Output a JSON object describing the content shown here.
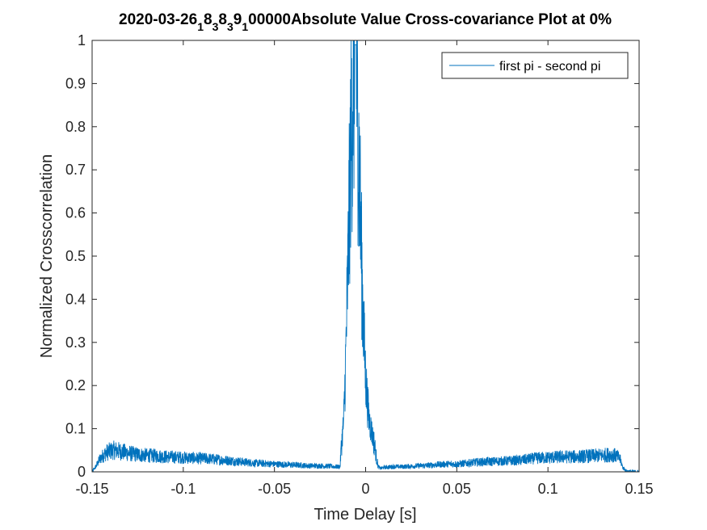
{
  "chart_data": {
    "type": "line",
    "title_parts": [
      {
        "text": "2020-03-26",
        "sub": false
      },
      {
        "text": "1",
        "sub": true
      },
      {
        "text": "8",
        "sub": false
      },
      {
        "text": "3",
        "sub": true
      },
      {
        "text": "8",
        "sub": false
      },
      {
        "text": "3",
        "sub": true
      },
      {
        "text": "9",
        "sub": false
      },
      {
        "text": "1",
        "sub": true
      },
      {
        "text": "00000Absolute Value Cross-covariance Plot at 0%",
        "sub": false
      }
    ],
    "xlabel": "Time Delay [s]",
    "ylabel": "Normalized Crosscorrelation",
    "xlim": [
      -0.15,
      0.15
    ],
    "ylim": [
      0,
      1
    ],
    "xticks": [
      -0.15,
      -0.1,
      -0.05,
      0,
      0.05,
      0.1,
      0.15
    ],
    "xtick_labels": [
      "-0.15",
      "-0.1",
      "-0.05",
      "0",
      "0.05",
      "0.1",
      "0.15"
    ],
    "yticks": [
      0,
      0.1,
      0.2,
      0.3,
      0.4,
      0.5,
      0.6,
      0.7,
      0.8,
      0.9,
      1
    ],
    "ytick_labels": [
      "0",
      "0.1",
      "0.2",
      "0.3",
      "0.4",
      "0.5",
      "0.6",
      "0.7",
      "0.8",
      "0.9",
      "1"
    ],
    "grid": false,
    "legend_position": "top-right",
    "series": [
      {
        "name": "first pi - second pi",
        "color": "#0072BD",
        "x": [
          -0.15,
          -0.148,
          -0.146,
          -0.144,
          -0.142,
          -0.14,
          -0.138,
          -0.136,
          -0.134,
          -0.132,
          -0.13,
          -0.125,
          -0.12,
          -0.115,
          -0.11,
          -0.105,
          -0.1,
          -0.095,
          -0.09,
          -0.085,
          -0.08,
          -0.075,
          -0.07,
          -0.065,
          -0.06,
          -0.055,
          -0.05,
          -0.045,
          -0.04,
          -0.035,
          -0.03,
          -0.025,
          -0.02,
          -0.016,
          -0.014,
          -0.0135,
          -0.012,
          -0.011,
          -0.01,
          -0.009,
          -0.008,
          -0.007,
          -0.006,
          -0.005,
          -0.004,
          -0.003,
          -0.002,
          -0.001,
          0.0,
          0.001,
          0.002,
          0.003,
          0.004,
          0.005,
          0.006,
          0.007,
          0.008,
          0.01,
          0.015,
          0.02,
          0.025,
          0.03,
          0.035,
          0.04,
          0.045,
          0.05,
          0.055,
          0.06,
          0.065,
          0.07,
          0.075,
          0.08,
          0.085,
          0.09,
          0.095,
          0.1,
          0.105,
          0.11,
          0.115,
          0.12,
          0.125,
          0.13,
          0.134,
          0.137,
          0.139,
          0.14,
          0.141,
          0.143,
          0.146,
          0.15
        ],
        "y": [
          0.0,
          0.012,
          0.028,
          0.038,
          0.045,
          0.048,
          0.05,
          0.049,
          0.047,
          0.045,
          0.043,
          0.04,
          0.038,
          0.037,
          0.035,
          0.034,
          0.033,
          0.032,
          0.031,
          0.03,
          0.028,
          0.026,
          0.024,
          0.022,
          0.02,
          0.019,
          0.018,
          0.017,
          0.016,
          0.015,
          0.014,
          0.014,
          0.013,
          0.012,
          0.012,
          0.05,
          0.12,
          0.25,
          0.42,
          0.6,
          0.78,
          0.88,
          0.92,
          0.9,
          0.78,
          0.62,
          0.45,
          0.32,
          0.22,
          0.16,
          0.12,
          0.1,
          0.08,
          0.06,
          0.03,
          0.012,
          0.008,
          0.01,
          0.012,
          0.012,
          0.013,
          0.014,
          0.015,
          0.017,
          0.018,
          0.018,
          0.02,
          0.022,
          0.023,
          0.024,
          0.025,
          0.026,
          0.027,
          0.03,
          0.032,
          0.033,
          0.034,
          0.035,
          0.035,
          0.036,
          0.037,
          0.038,
          0.04,
          0.038,
          0.033,
          0.025,
          0.01,
          0.002,
          0.001,
          0.0
        ]
      }
    ]
  }
}
